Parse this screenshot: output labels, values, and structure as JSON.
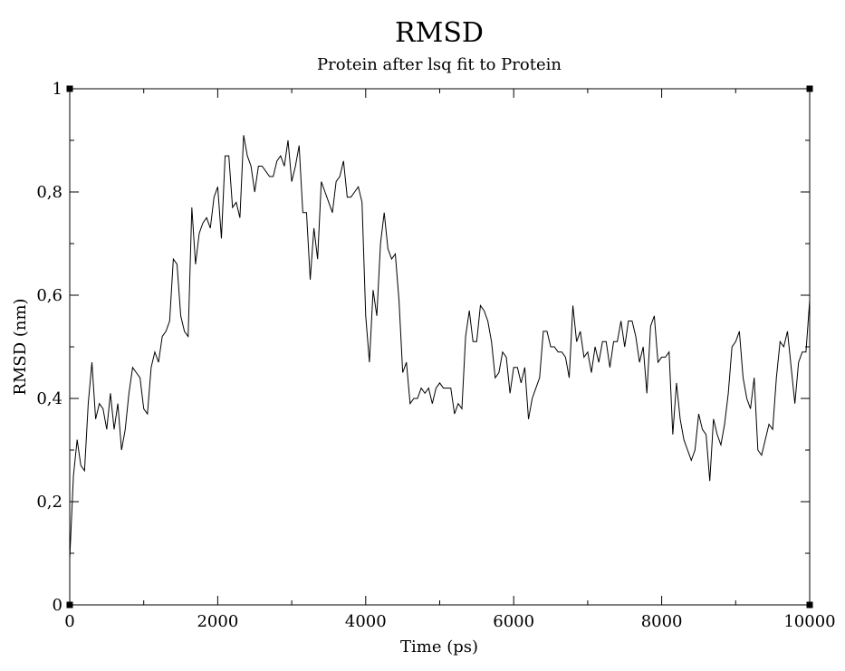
{
  "chart_data": {
    "type": "line",
    "title": "RMSD",
    "subtitle": "Protein after lsq fit to Protein",
    "xlabel": "Time (ps)",
    "ylabel": "RMSD (nm)",
    "xlim": [
      0,
      10000
    ],
    "ylim": [
      0,
      1
    ],
    "x_ticks": [
      0,
      2000,
      4000,
      6000,
      8000,
      10000
    ],
    "x_tick_labels": [
      "0",
      "2000",
      "4000",
      "6000",
      "8000",
      "10000"
    ],
    "y_ticks": [
      0,
      0.2,
      0.4,
      0.6,
      0.8,
      1
    ],
    "y_tick_labels": [
      "0",
      "0,2",
      "0,4",
      "0,6",
      "0,8",
      "1"
    ],
    "grid": false,
    "legend": "none",
    "line_color": "#000000",
    "series": [
      {
        "x": [
          0,
          50,
          100,
          150,
          200,
          250,
          300,
          350,
          400,
          450,
          500,
          550,
          600,
          650,
          700,
          750,
          800,
          850,
          900,
          950,
          1000,
          1050,
          1100,
          1150,
          1200,
          1250,
          1300,
          1350,
          1400,
          1450,
          1500,
          1550,
          1600,
          1650,
          1700,
          1750,
          1800,
          1850,
          1900,
          1950,
          2000,
          2050,
          2100,
          2150,
          2200,
          2250,
          2300,
          2350,
          2400,
          2450,
          2500,
          2550,
          2600,
          2650,
          2700,
          2750,
          2800,
          2850,
          2900,
          2950,
          3000,
          3050,
          3100,
          3150,
          3200,
          3250,
          3300,
          3350,
          3400,
          3450,
          3500,
          3550,
          3600,
          3650,
          3700,
          3750,
          3800,
          3850,
          3900,
          3950,
          4000,
          4050,
          4100,
          4150,
          4200,
          4250,
          4300,
          4350,
          4400,
          4450,
          4500,
          4550,
          4600,
          4650,
          4700,
          4750,
          4800,
          4850,
          4900,
          4950,
          5000,
          5050,
          5100,
          5150,
          5200,
          5250,
          5300,
          5350,
          5400,
          5450,
          5500,
          5550,
          5600,
          5650,
          5700,
          5750,
          5800,
          5850,
          5900,
          5950,
          6000,
          6050,
          6100,
          6150,
          6200,
          6250,
          6300,
          6350,
          6400,
          6450,
          6500,
          6550,
          6600,
          6650,
          6700,
          6750,
          6800,
          6850,
          6900,
          6950,
          7000,
          7050,
          7100,
          7150,
          7200,
          7250,
          7300,
          7350,
          7400,
          7450,
          7500,
          7550,
          7600,
          7650,
          7700,
          7750,
          7800,
          7850,
          7900,
          7950,
          8000,
          8050,
          8100,
          8150,
          8200,
          8250,
          8300,
          8350,
          8400,
          8450,
          8500,
          8550,
          8600,
          8650,
          8700,
          8750,
          8800,
          8850,
          8900,
          8950,
          9000,
          9050,
          9100,
          9150,
          9200,
          9250,
          9300,
          9350,
          9400,
          9450,
          9500,
          9550,
          9600,
          9650,
          9700,
          9750,
          9800,
          9850,
          9900,
          9950,
          10000
        ],
        "y": [
          0.09,
          0.25,
          0.32,
          0.27,
          0.26,
          0.39,
          0.47,
          0.36,
          0.39,
          0.38,
          0.34,
          0.41,
          0.34,
          0.39,
          0.3,
          0.34,
          0.41,
          0.46,
          0.45,
          0.44,
          0.38,
          0.37,
          0.46,
          0.49,
          0.47,
          0.52,
          0.53,
          0.55,
          0.67,
          0.66,
          0.56,
          0.53,
          0.52,
          0.77,
          0.66,
          0.72,
          0.74,
          0.75,
          0.73,
          0.79,
          0.81,
          0.71,
          0.87,
          0.87,
          0.77,
          0.78,
          0.75,
          0.91,
          0.87,
          0.85,
          0.8,
          0.85,
          0.85,
          0.84,
          0.83,
          0.83,
          0.86,
          0.87,
          0.85,
          0.9,
          0.82,
          0.85,
          0.89,
          0.76,
          0.76,
          0.63,
          0.73,
          0.67,
          0.82,
          0.8,
          0.78,
          0.76,
          0.82,
          0.83,
          0.86,
          0.79,
          0.79,
          0.8,
          0.81,
          0.78,
          0.56,
          0.47,
          0.61,
          0.56,
          0.7,
          0.76,
          0.69,
          0.67,
          0.68,
          0.59,
          0.45,
          0.47,
          0.39,
          0.4,
          0.4,
          0.42,
          0.41,
          0.42,
          0.39,
          0.42,
          0.43,
          0.42,
          0.42,
          0.42,
          0.37,
          0.39,
          0.38,
          0.52,
          0.57,
          0.51,
          0.51,
          0.58,
          0.57,
          0.55,
          0.51,
          0.44,
          0.45,
          0.49,
          0.48,
          0.41,
          0.46,
          0.46,
          0.43,
          0.46,
          0.36,
          0.4,
          0.42,
          0.44,
          0.53,
          0.53,
          0.5,
          0.5,
          0.49,
          0.49,
          0.48,
          0.44,
          0.58,
          0.51,
          0.53,
          0.48,
          0.49,
          0.45,
          0.5,
          0.47,
          0.51,
          0.51,
          0.46,
          0.51,
          0.51,
          0.55,
          0.5,
          0.55,
          0.55,
          0.52,
          0.47,
          0.5,
          0.41,
          0.54,
          0.56,
          0.47,
          0.48,
          0.48,
          0.49,
          0.33,
          0.43,
          0.36,
          0.32,
          0.3,
          0.28,
          0.3,
          0.37,
          0.34,
          0.33,
          0.24,
          0.36,
          0.33,
          0.31,
          0.35,
          0.41,
          0.5,
          0.51,
          0.53,
          0.44,
          0.4,
          0.38,
          0.44,
          0.3,
          0.29,
          0.32,
          0.35,
          0.34,
          0.44,
          0.51,
          0.5,
          0.53,
          0.46,
          0.39,
          0.47,
          0.49,
          0.49,
          0.59
        ]
      }
    ]
  }
}
